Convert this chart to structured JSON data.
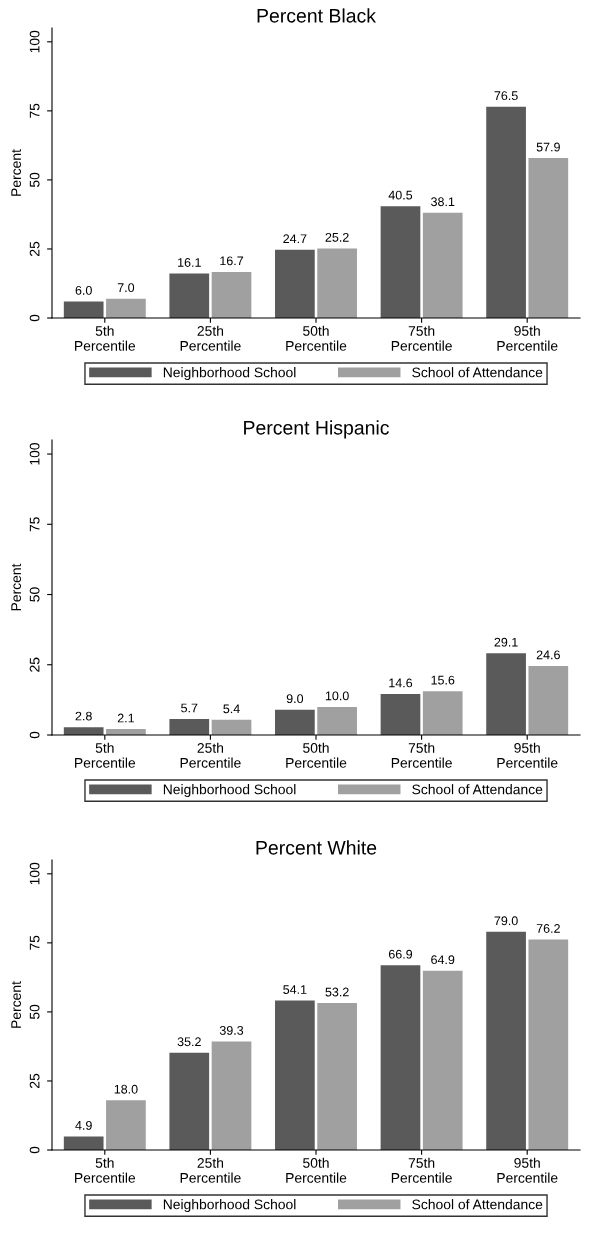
{
  "chart_data": [
    {
      "type": "bar",
      "title": "Percent Black",
      "ylabel": "Percent",
      "categories": [
        "5th\nPercentile",
        "25th\nPercentile",
        "50th\nPercentile",
        "75th\nPercentile",
        "95th\nPercentile"
      ],
      "series": [
        {
          "name": "Neighborhood School",
          "color": "#5a5a5a",
          "values": [
            6.0,
            16.1,
            24.7,
            40.5,
            76.5
          ],
          "value_labels": [
            "6.0",
            "16.1",
            "24.7",
            "40.5",
            "76.5"
          ]
        },
        {
          "name": "School of Attendance",
          "color": "#a0a0a0",
          "values": [
            7.0,
            16.7,
            25.2,
            38.1,
            57.9
          ],
          "value_labels": [
            "7.0",
            "16.7",
            "25.2",
            "38.1",
            "57.9"
          ]
        }
      ],
      "ylim": [
        0,
        105
      ],
      "yticks": [
        0,
        25,
        50,
        75,
        100
      ],
      "legend": "bottom",
      "grid": false
    },
    {
      "type": "bar",
      "title": "Percent Hispanic",
      "ylabel": "Percent",
      "categories": [
        "5th\nPercentile",
        "25th\nPercentile",
        "50th\nPercentile",
        "75th\nPercentile",
        "95th\nPercentile"
      ],
      "series": [
        {
          "name": "Neighborhood School",
          "color": "#5a5a5a",
          "values": [
            2.8,
            5.7,
            9.0,
            14.6,
            29.1
          ],
          "value_labels": [
            "2.8",
            "5.7",
            "9.0",
            "14.6",
            "29.1"
          ]
        },
        {
          "name": "School of Attendance",
          "color": "#a0a0a0",
          "values": [
            2.1,
            5.4,
            10.0,
            15.6,
            24.6
          ],
          "value_labels": [
            "2.1",
            "5.4",
            "10.0",
            "15.6",
            "24.6"
          ]
        }
      ],
      "ylim": [
        0,
        105
      ],
      "yticks": [
        0,
        25,
        50,
        75,
        100
      ],
      "legend": "bottom",
      "grid": false
    },
    {
      "type": "bar",
      "title": "Percent White",
      "ylabel": "Percent",
      "categories": [
        "5th\nPercentile",
        "25th\nPercentile",
        "50th\nPercentile",
        "75th\nPercentile",
        "95th\nPercentile"
      ],
      "series": [
        {
          "name": "Neighborhood School",
          "color": "#5a5a5a",
          "values": [
            4.9,
            35.2,
            54.1,
            66.9,
            79.0
          ],
          "value_labels": [
            "4.9",
            "35.2",
            "54.1",
            "66.9",
            "79.0"
          ]
        },
        {
          "name": "School of Attendance",
          "color": "#a0a0a0",
          "values": [
            18.0,
            39.3,
            53.2,
            64.9,
            76.2
          ],
          "value_labels": [
            "18.0",
            "39.3",
            "53.2",
            "64.9",
            "76.2"
          ]
        }
      ],
      "ylim": [
        0,
        105
      ],
      "yticks": [
        0,
        25,
        50,
        75,
        100
      ],
      "legend": "bottom",
      "grid": false
    }
  ]
}
